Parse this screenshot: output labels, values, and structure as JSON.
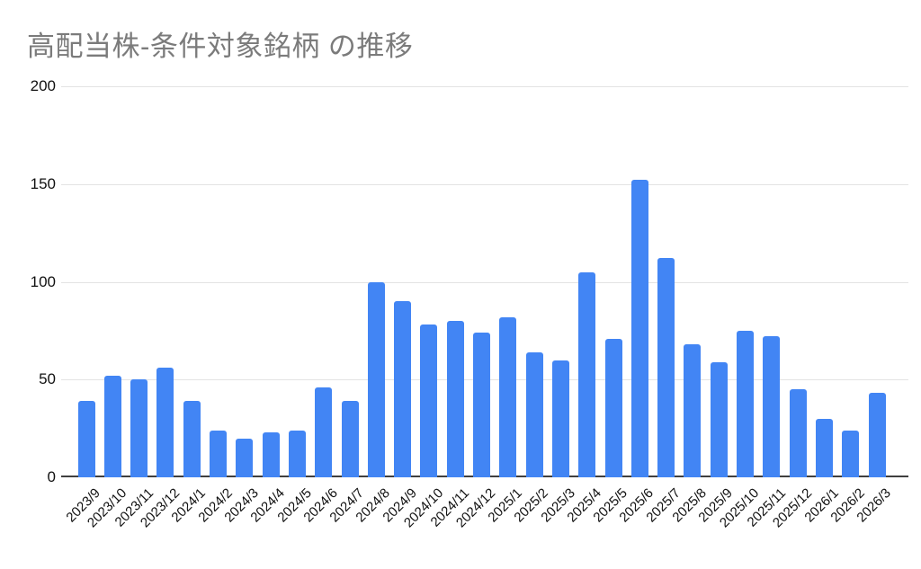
{
  "chart": {
    "title": "高配当株-条件対象銘柄 の推移",
    "colors": {
      "bar": "#4285F4",
      "title_text": "#7b7b7b",
      "axis_label": "#111111",
      "gridline": "#e3e3e3",
      "baseline": "#3f3f3f",
      "background": "#ffffff"
    }
  },
  "chart_data": {
    "type": "bar",
    "title": "高配当株-条件対象銘柄 の推移",
    "xlabel": "",
    "ylabel": "",
    "ylim": [
      0,
      200
    ],
    "yticks": [
      0,
      50,
      100,
      150,
      200
    ],
    "grid": true,
    "legend": "none",
    "bar_color": "#4285F4",
    "categories": [
      "2023/9",
      "2023/10",
      "2023/11",
      "2023/12",
      "2024/1",
      "2024/2",
      "2024/3",
      "2024/4",
      "2024/5",
      "2024/6",
      "2024/7",
      "2024/8",
      "2024/9",
      "2024/10",
      "2024/11",
      "2024/12",
      "2025/1",
      "2025/2",
      "2025/3",
      "2025/4",
      "2025/5",
      "2025/6",
      "2025/7",
      "2025/8",
      "2025/9",
      "2025/10",
      "2025/11",
      "2025/12",
      "2026/1",
      "2026/2",
      "2026/3"
    ],
    "values": [
      39,
      52,
      50,
      56,
      39,
      24,
      20,
      23,
      24,
      46,
      39,
      100,
      90,
      78,
      80,
      74,
      82,
      64,
      60,
      105,
      71,
      152,
      112,
      68,
      59,
      75,
      72,
      45,
      30,
      24,
      43
    ]
  }
}
